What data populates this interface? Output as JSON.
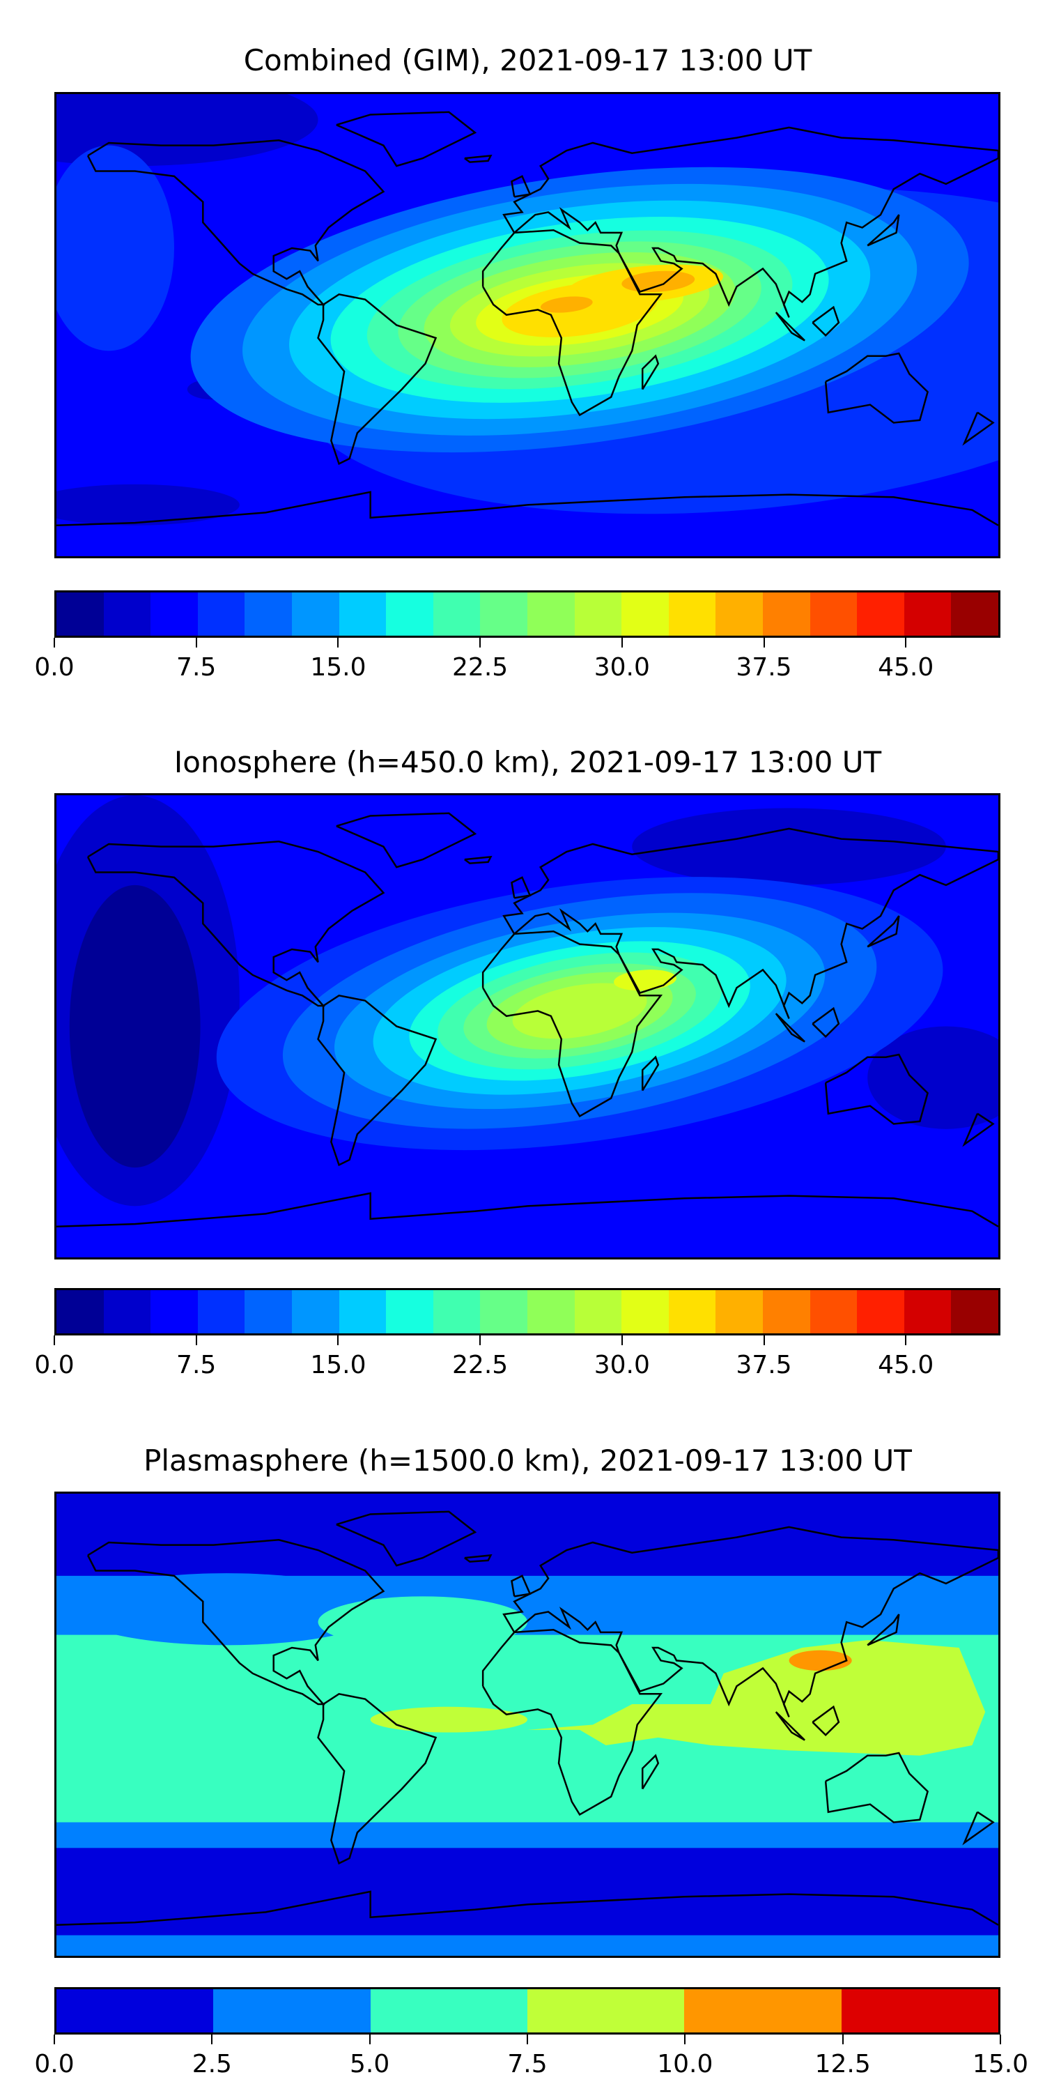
{
  "chart_data": [
    {
      "type": "heatmap",
      "title": "Combined (GIM), 2021-09-17 13:00 UT",
      "levels": [
        0,
        50
      ],
      "level_step": 2.5,
      "colors": [
        "#000096",
        "#0000cc",
        "#0000ff",
        "#0030ff",
        "#0064ff",
        "#0096ff",
        "#00ccff",
        "#16ffe0",
        "#40ffb0",
        "#66ff88",
        "#90ff58",
        "#b8ff38",
        "#e2ff16",
        "#ffe000",
        "#ffb000",
        "#ff8000",
        "#ff5000",
        "#ff2000",
        "#d40000",
        "#990000"
      ],
      "tick_values": [
        0,
        7.5,
        15,
        22.5,
        30,
        37.5,
        45
      ],
      "tick_labels": [
        "0.0",
        "7.5",
        "15.0",
        "22.5",
        "30.0",
        "37.5",
        "45.0"
      ],
      "peak_value_range": [
        35,
        37.5
      ]
    },
    {
      "type": "heatmap",
      "title": "Ionosphere  (h=450.0 km), 2021-09-17 13:00 UT",
      "levels": [
        0,
        50
      ],
      "level_step": 2.5,
      "colors": [
        "#000096",
        "#0000cc",
        "#0000ff",
        "#0030ff",
        "#0064ff",
        "#0096ff",
        "#00ccff",
        "#16ffe0",
        "#40ffb0",
        "#66ff88",
        "#90ff58",
        "#b8ff38",
        "#e2ff16",
        "#ffe000",
        "#ffb000",
        "#ff8000",
        "#ff5000",
        "#ff2000",
        "#d40000",
        "#990000"
      ],
      "tick_values": [
        0,
        7.5,
        15,
        22.5,
        30,
        37.5,
        45
      ],
      "tick_labels": [
        "0.0",
        "7.5",
        "15.0",
        "22.5",
        "30.0",
        "37.5",
        "45.0"
      ],
      "peak_value_range": [
        30,
        32.5
      ]
    },
    {
      "type": "heatmap",
      "title": "Plasmasphere (h=1500.0 km), 2021-09-17 13:00 UT",
      "levels": [
        0,
        15
      ],
      "level_step": 2.5,
      "colors": [
        "#0000dd",
        "#0080ff",
        "#38ffc0",
        "#c0ff38",
        "#ff9600",
        "#dd0000"
      ],
      "tick_values": [
        0,
        2.5,
        5,
        7.5,
        10,
        12.5,
        15
      ],
      "tick_labels": [
        "0.0",
        "2.5",
        "5.0",
        "7.5",
        "10.0",
        "12.5",
        "15.0"
      ],
      "peak_value_range": [
        10,
        12.5
      ]
    }
  ]
}
